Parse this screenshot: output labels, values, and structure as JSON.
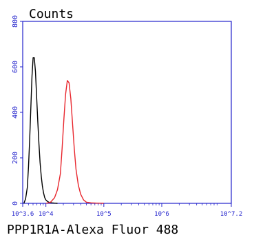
{
  "chart_data": {
    "type": "line",
    "title": "Counts",
    "xlabel": "PPP1R1A-Alexa Fluor 488",
    "ylabel": "",
    "xscale": "log",
    "xlim": [
      3.6,
      7.2
    ],
    "ylim": [
      0,
      800
    ],
    "grid": false,
    "legend": "none",
    "x_ticks": [
      {
        "value": 3.6,
        "label": "10^3.6"
      },
      {
        "value": 4,
        "label": "10^4"
      },
      {
        "value": 5,
        "label": "10^5"
      },
      {
        "value": 6,
        "label": "10^6"
      },
      {
        "value": 7.2,
        "label": "10^7.2"
      }
    ],
    "y_ticks": [
      {
        "value": 0,
        "label": "0"
      },
      {
        "value": 200,
        "label": "200"
      },
      {
        "value": 400,
        "label": "400"
      },
      {
        "value": 600,
        "label": "600"
      },
      {
        "value": 800,
        "label": "800"
      }
    ],
    "series": [
      {
        "color": "#000000",
        "x": [
          3.62,
          3.65,
          3.68,
          3.7,
          3.72,
          3.74,
          3.76,
          3.78,
          3.8,
          3.82,
          3.84,
          3.86,
          3.88,
          3.9,
          3.92,
          3.94,
          3.96,
          3.98,
          4.0,
          4.03,
          4.06,
          4.1,
          4.15,
          4.2
        ],
        "y": [
          0,
          20,
          70,
          160,
          280,
          420,
          560,
          640,
          640,
          580,
          470,
          360,
          260,
          180,
          120,
          75,
          45,
          25,
          15,
          8,
          4,
          2,
          1,
          0
        ]
      },
      {
        "color": "#e8262d",
        "x": [
          4.0,
          4.08,
          4.15,
          4.2,
          4.25,
          4.28,
          4.31,
          4.34,
          4.37,
          4.4,
          4.43,
          4.46,
          4.49,
          4.52,
          4.56,
          4.6,
          4.65,
          4.7,
          4.78,
          4.88,
          5.0
        ],
        "y": [
          0,
          5,
          25,
          60,
          130,
          240,
          370,
          480,
          540,
          530,
          460,
          350,
          240,
          150,
          80,
          40,
          15,
          5,
          2,
          1,
          0
        ]
      }
    ]
  }
}
